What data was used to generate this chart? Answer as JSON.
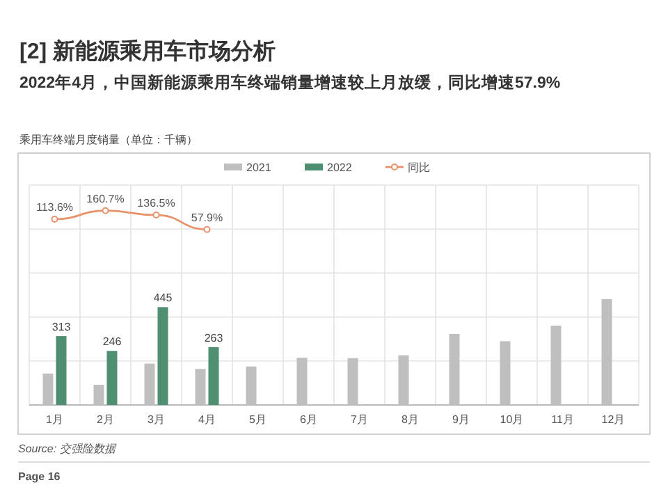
{
  "chart_data": {
    "type": "bar",
    "title": "[2] 新能源乘用车市场分析",
    "subtitle": "2022年4月，中国新能源乘用车终端销量增速较上月放缓，同比增速57.9%",
    "ylabel": "乘用车终端月度销量（单位：千辆）",
    "categories": [
      "1月",
      "2月",
      "3月",
      "4月",
      "5月",
      "6月",
      "7月",
      "8月",
      "9月",
      "10月",
      "11月",
      "12月"
    ],
    "series": [
      {
        "name": "2021",
        "color": "#bfbfbf",
        "values": [
          143,
          92,
          188,
          164,
          175,
          215,
          213,
          226,
          323,
          290,
          361,
          481
        ]
      },
      {
        "name": "2022",
        "color": "#4e8f72",
        "values": [
          313,
          246,
          445,
          263,
          null,
          null,
          null,
          null,
          null,
          null,
          null,
          null
        ],
        "value_labels": [
          "313",
          "246",
          "445",
          "263",
          null,
          null,
          null,
          null,
          null,
          null,
          null,
          null
        ]
      },
      {
        "name": "同比",
        "type": "line",
        "axis": "y2",
        "color": "#e8916a",
        "marker": "circle",
        "values": [
          113.6,
          160.7,
          136.5,
          57.9,
          null,
          null,
          null,
          null,
          null,
          null,
          null,
          null
        ],
        "value_labels": [
          "113.6%",
          "160.7%",
          "136.5%",
          "57.9%",
          null,
          null,
          null,
          null,
          null,
          null,
          null,
          null
        ]
      }
    ],
    "ylim": [
      0,
      1000
    ],
    "yticks": [
      {
        "value": 0,
        "label": null
      },
      {
        "value": 200,
        "label": null
      },
      {
        "value": 400,
        "label": null
      },
      {
        "value": 600,
        "label": null
      },
      {
        "value": 800,
        "label": null
      },
      {
        "value": 1000,
        "label": null
      }
    ],
    "y2lim": [
      -900,
      300
    ],
    "tick_labels": "x",
    "grid": true,
    "legend": "top",
    "annotations": [
      "Source: 交强险数据",
      "Page 16"
    ]
  }
}
